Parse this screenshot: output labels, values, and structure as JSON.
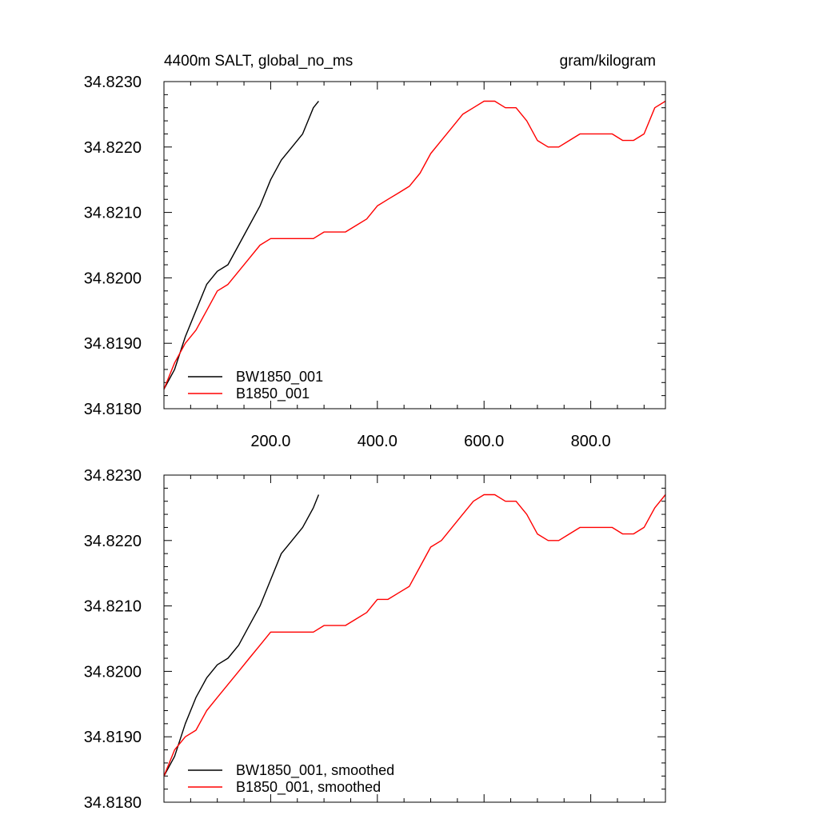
{
  "chart_data": [
    {
      "type": "line",
      "title_left": "4400m SALT, global_no_ms",
      "title_right": "gram/kilogram",
      "xlim": [
        0,
        940
      ],
      "ylim": [
        34.818,
        34.823
      ],
      "xticks": [
        200,
        400,
        600,
        800
      ],
      "xtick_labels": [
        "200.0",
        "400.0",
        "600.0",
        "800.0"
      ],
      "yticks": [
        34.818,
        34.819,
        34.82,
        34.821,
        34.822,
        34.823
      ],
      "ytick_labels": [
        "34.8180",
        "34.8190",
        "34.8200",
        "34.8210",
        "34.8220",
        "34.8230"
      ],
      "legend_placement": "bottom-left",
      "series": [
        {
          "name": "BW1850_001",
          "color": "#000000",
          "x": [
            0,
            20,
            40,
            60,
            80,
            100,
            120,
            140,
            160,
            180,
            200,
            220,
            240,
            260,
            280,
            290
          ],
          "y": [
            34.8183,
            34.8186,
            34.8191,
            34.8195,
            34.8199,
            34.8201,
            34.8202,
            34.8205,
            34.8208,
            34.8211,
            34.8215,
            34.8218,
            34.822,
            34.8222,
            34.8226,
            34.8227
          ]
        },
        {
          "name": "B1850_001",
          "color": "#ff0000",
          "x": [
            0,
            20,
            40,
            60,
            80,
            100,
            120,
            140,
            160,
            180,
            200,
            220,
            240,
            260,
            280,
            300,
            320,
            340,
            360,
            380,
            400,
            420,
            440,
            460,
            480,
            500,
            520,
            540,
            560,
            580,
            600,
            620,
            640,
            660,
            680,
            700,
            720,
            740,
            760,
            780,
            800,
            820,
            840,
            860,
            880,
            900,
            920,
            940
          ],
          "y": [
            34.8183,
            34.8187,
            34.819,
            34.8192,
            34.8195,
            34.8198,
            34.8199,
            34.8201,
            34.8203,
            34.8205,
            34.8206,
            34.8206,
            34.8206,
            34.8206,
            34.8206,
            34.8207,
            34.8207,
            34.8207,
            34.8208,
            34.8209,
            34.8211,
            34.8212,
            34.8213,
            34.8214,
            34.8216,
            34.8219,
            34.8221,
            34.8223,
            34.8225,
            34.8226,
            34.8227,
            34.8227,
            34.8226,
            34.8226,
            34.8224,
            34.8221,
            34.822,
            34.822,
            34.8221,
            34.8222,
            34.8222,
            34.8222,
            34.8222,
            34.8221,
            34.8221,
            34.8222,
            34.8226,
            34.8227
          ]
        }
      ]
    },
    {
      "type": "line",
      "xlim": [
        0,
        940
      ],
      "ylim": [
        34.818,
        34.823
      ],
      "yticks": [
        34.818,
        34.819,
        34.82,
        34.821,
        34.822,
        34.823
      ],
      "ytick_labels": [
        "34.8180",
        "34.8190",
        "34.8200",
        "34.8210",
        "34.8220",
        "34.8230"
      ],
      "legend_placement": "bottom-left",
      "series": [
        {
          "name": "BW1850_001, smoothed",
          "color": "#000000",
          "x": [
            0,
            20,
            40,
            60,
            80,
            100,
            120,
            140,
            160,
            180,
            200,
            220,
            240,
            260,
            280,
            290
          ],
          "y": [
            34.8184,
            34.8187,
            34.8192,
            34.8196,
            34.8199,
            34.8201,
            34.8202,
            34.8204,
            34.8207,
            34.821,
            34.8214,
            34.8218,
            34.822,
            34.8222,
            34.8225,
            34.8227
          ]
        },
        {
          "name": "B1850_001, smoothed",
          "color": "#ff0000",
          "x": [
            0,
            20,
            40,
            60,
            80,
            100,
            120,
            140,
            160,
            180,
            200,
            220,
            240,
            260,
            280,
            300,
            320,
            340,
            360,
            380,
            400,
            420,
            440,
            460,
            480,
            500,
            520,
            540,
            560,
            580,
            600,
            620,
            640,
            660,
            680,
            700,
            720,
            740,
            760,
            780,
            800,
            820,
            840,
            860,
            880,
            900,
            920,
            940
          ],
          "y": [
            34.8184,
            34.8188,
            34.819,
            34.8191,
            34.8194,
            34.8196,
            34.8198,
            34.82,
            34.8202,
            34.8204,
            34.8206,
            34.8206,
            34.8206,
            34.8206,
            34.8206,
            34.8207,
            34.8207,
            34.8207,
            34.8208,
            34.8209,
            34.8211,
            34.8211,
            34.8212,
            34.8213,
            34.8216,
            34.8219,
            34.822,
            34.8222,
            34.8224,
            34.8226,
            34.8227,
            34.8227,
            34.8226,
            34.8226,
            34.8224,
            34.8221,
            34.822,
            34.822,
            34.8221,
            34.8222,
            34.8222,
            34.8222,
            34.8222,
            34.8221,
            34.8221,
            34.8222,
            34.8225,
            34.8227
          ]
        }
      ]
    }
  ]
}
